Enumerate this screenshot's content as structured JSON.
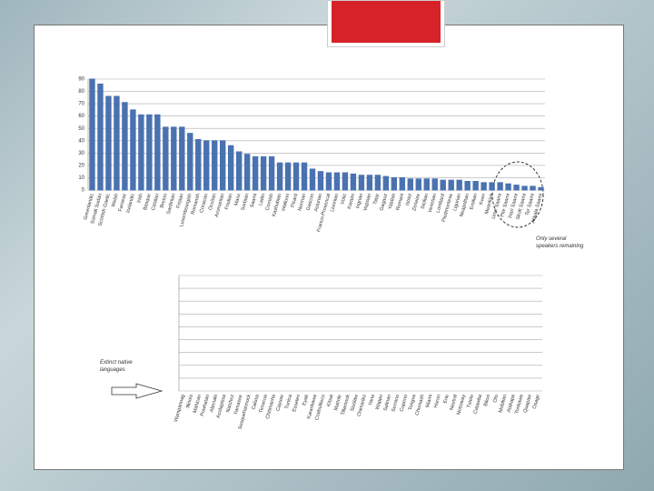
{
  "chart_data": [
    {
      "type": "bar",
      "color": "#4a72b0",
      "categories": [
        "Greenlandic",
        "Somali Sudan",
        "Scottish Gaelic",
        "Welsh",
        "Faroese",
        "Icelandic",
        "Irish",
        "Basque",
        "Catalan",
        "Breton",
        "Sardinian",
        "Frisian",
        "Luxembourgish",
        "Romansh",
        "Corsican",
        "Occitan",
        "Aromanian",
        "Friulian",
        "Manx",
        "Sorbian",
        "Saami",
        "Ladin",
        "Cornish",
        "Kashubian",
        "Walloon",
        "Picard",
        "Norman",
        "Gascon",
        "Asturian",
        "Franco-Provencal",
        "Livonian",
        "Votic",
        "Karaim",
        "Ingrian",
        "Vepsian",
        "Tatar",
        "Gagauz",
        "Yiddish",
        "Romani",
        "Istriot",
        "Zeneize",
        "Sicilian",
        "Venetian",
        "Lombard",
        "Piedmontese",
        "Ligurian",
        "Neapolitan",
        "Emilian",
        "Kven",
        "Meankieli",
        "Ume Saami",
        "Pite Saami",
        "Inari Saami",
        "Skolt Saami",
        "Ter Saami",
        "Akkala Saami"
      ],
      "values": [
        90,
        86,
        76,
        76,
        71,
        65,
        61,
        61,
        61,
        51,
        51,
        51,
        46,
        41,
        40,
        40,
        40,
        36,
        31,
        29,
        27,
        27,
        27,
        22,
        22,
        22,
        22,
        17,
        15,
        14,
        14,
        14,
        13,
        12,
        12,
        12,
        11,
        10,
        10,
        9,
        9,
        9,
        9,
        8,
        8,
        8,
        7,
        7,
        6,
        6,
        6,
        5,
        4,
        3,
        3,
        2
      ],
      "ylim": [
        0,
        90
      ],
      "yticks": [
        0,
        10,
        20,
        30,
        40,
        50,
        60,
        70,
        80,
        90
      ],
      "grid": true,
      "tick_labels": true,
      "annotation": "Only several speakers remaining"
    },
    {
      "type": "bar",
      "color": "#4a72b0",
      "categories": [
        "Wampanoag",
        "Illinois",
        "Mahican",
        "Powhatan",
        "Abenaki",
        "Acolapissa",
        "Natchez",
        "Yamasee",
        "Susquehannock",
        "Calusa",
        "Timucua",
        "Chitimacha",
        "Cayuse",
        "Tunica",
        "Esselen",
        "Eyak",
        "Karankawa",
        "Coahuilteco",
        "Kitsai",
        "Mattole",
        "Tillamook",
        "Siuslaw",
        "Chimariko",
        "Yana",
        "Wappo",
        "Salinan",
        "Serrano",
        "Cupeno",
        "Tongva",
        "Chumash",
        "Miami",
        "Huron",
        "Erie",
        "Neutral",
        "Nottoway",
        "Tutelo",
        "Catawba",
        "Biloxi",
        "Ofo",
        "Mobilian",
        "Atakapa",
        "Tonkawa",
        "Quapaw",
        "Osage"
      ],
      "values": [
        0,
        0,
        0,
        0,
        0,
        0,
        0,
        0,
        0,
        0,
        0,
        0,
        0,
        0,
        0,
        0,
        0,
        0,
        0,
        0,
        0,
        0,
        0,
        0,
        0,
        0,
        0,
        0,
        0,
        0,
        0,
        0,
        0,
        0,
        0,
        0,
        0,
        0,
        0,
        0,
        0,
        0,
        0,
        0
      ],
      "ylim": [
        0,
        90
      ],
      "yticks": [
        0,
        10,
        20,
        30,
        40,
        50,
        60,
        70,
        80,
        90
      ],
      "grid": true,
      "tick_labels": false,
      "annotation": "Extinct native languages"
    }
  ]
}
